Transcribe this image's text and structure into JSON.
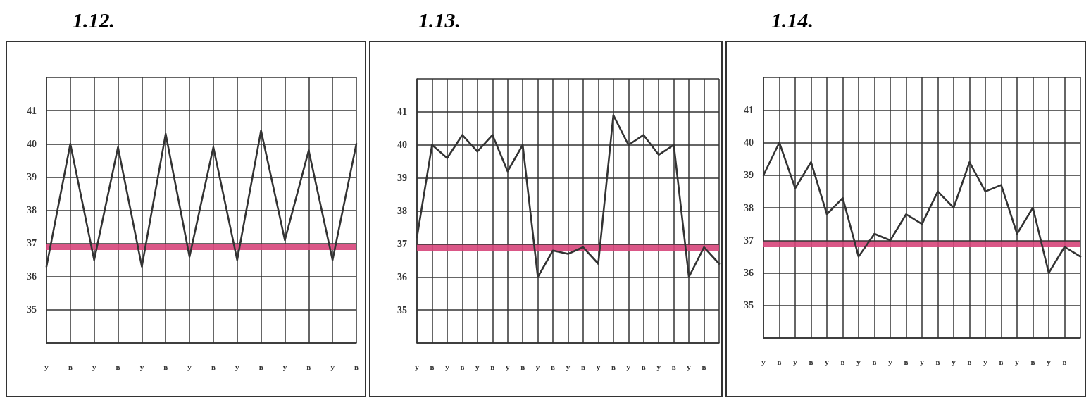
{
  "chart_data": [
    {
      "type": "line",
      "title": "1.12.",
      "categories": [
        "у",
        "в",
        "у",
        "в",
        "у",
        "в",
        "у",
        "в",
        "у",
        "в",
        "у",
        "в",
        "у",
        "в"
      ],
      "series": [
        {
          "color": "#333333",
          "values": [
            36.3,
            40.0,
            36.5,
            39.9,
            36.3,
            40.3,
            36.6,
            39.9,
            36.5,
            40.4,
            37.1,
            39.8,
            36.5,
            40.0
          ]
        }
      ],
      "ylim": [
        34,
        42
      ],
      "yticks": [
        35,
        36,
        37,
        38,
        39,
        40,
        41
      ],
      "grid": true,
      "marker": "none",
      "line_style": "solid",
      "ref_lines": [
        {
          "axis": "y",
          "value": 36.9,
          "color": "#d6457a"
        }
      ]
    },
    {
      "type": "line",
      "title": "1.13.",
      "categories": [
        "у",
        "в",
        "у",
        "в",
        "у",
        "в",
        "у",
        "в",
        "у",
        "в",
        "у",
        "в",
        "у",
        "в",
        "у",
        "в",
        "у",
        "в",
        "у",
        "в",
        null
      ],
      "series": [
        {
          "color": "#333333",
          "values": [
            37.2,
            40.0,
            39.6,
            40.3,
            39.8,
            40.3,
            39.2,
            40.0,
            36.0,
            36.8,
            36.7,
            36.9,
            36.4,
            40.9,
            40.0,
            40.3,
            39.7,
            40.0,
            36.0,
            36.9,
            36.4
          ]
        }
      ],
      "ylim": [
        34,
        42
      ],
      "yticks": [
        35,
        36,
        37,
        38,
        39,
        40,
        41
      ],
      "grid": true,
      "marker": "none",
      "line_style": "solid",
      "ref_lines": [
        {
          "axis": "y",
          "value": 36.9,
          "color": "#d6457a"
        }
      ]
    },
    {
      "type": "line",
      "title": "1.14.",
      "categories": [
        "у",
        "в",
        "у",
        "в",
        "у",
        "в",
        "у",
        "в",
        "у",
        "в",
        "у",
        "в",
        "у",
        "в",
        "у",
        "в",
        "у",
        "в",
        "у",
        "в",
        null
      ],
      "series": [
        {
          "color": "#333333",
          "values": [
            39.0,
            40.0,
            38.6,
            39.4,
            37.8,
            38.3,
            36.5,
            37.2,
            37.0,
            37.8,
            37.5,
            38.5,
            38.0,
            39.4,
            38.5,
            38.7,
            37.2,
            38.0,
            36.0,
            36.8,
            36.5
          ]
        }
      ],
      "ylim": [
        34,
        42
      ],
      "yticks": [
        35,
        36,
        37,
        38,
        39,
        40,
        41
      ],
      "grid": true,
      "marker": "none",
      "line_style": "solid",
      "ref_lines": [
        {
          "axis": "y",
          "value": 36.9,
          "color": "#d6457a"
        }
      ]
    }
  ]
}
